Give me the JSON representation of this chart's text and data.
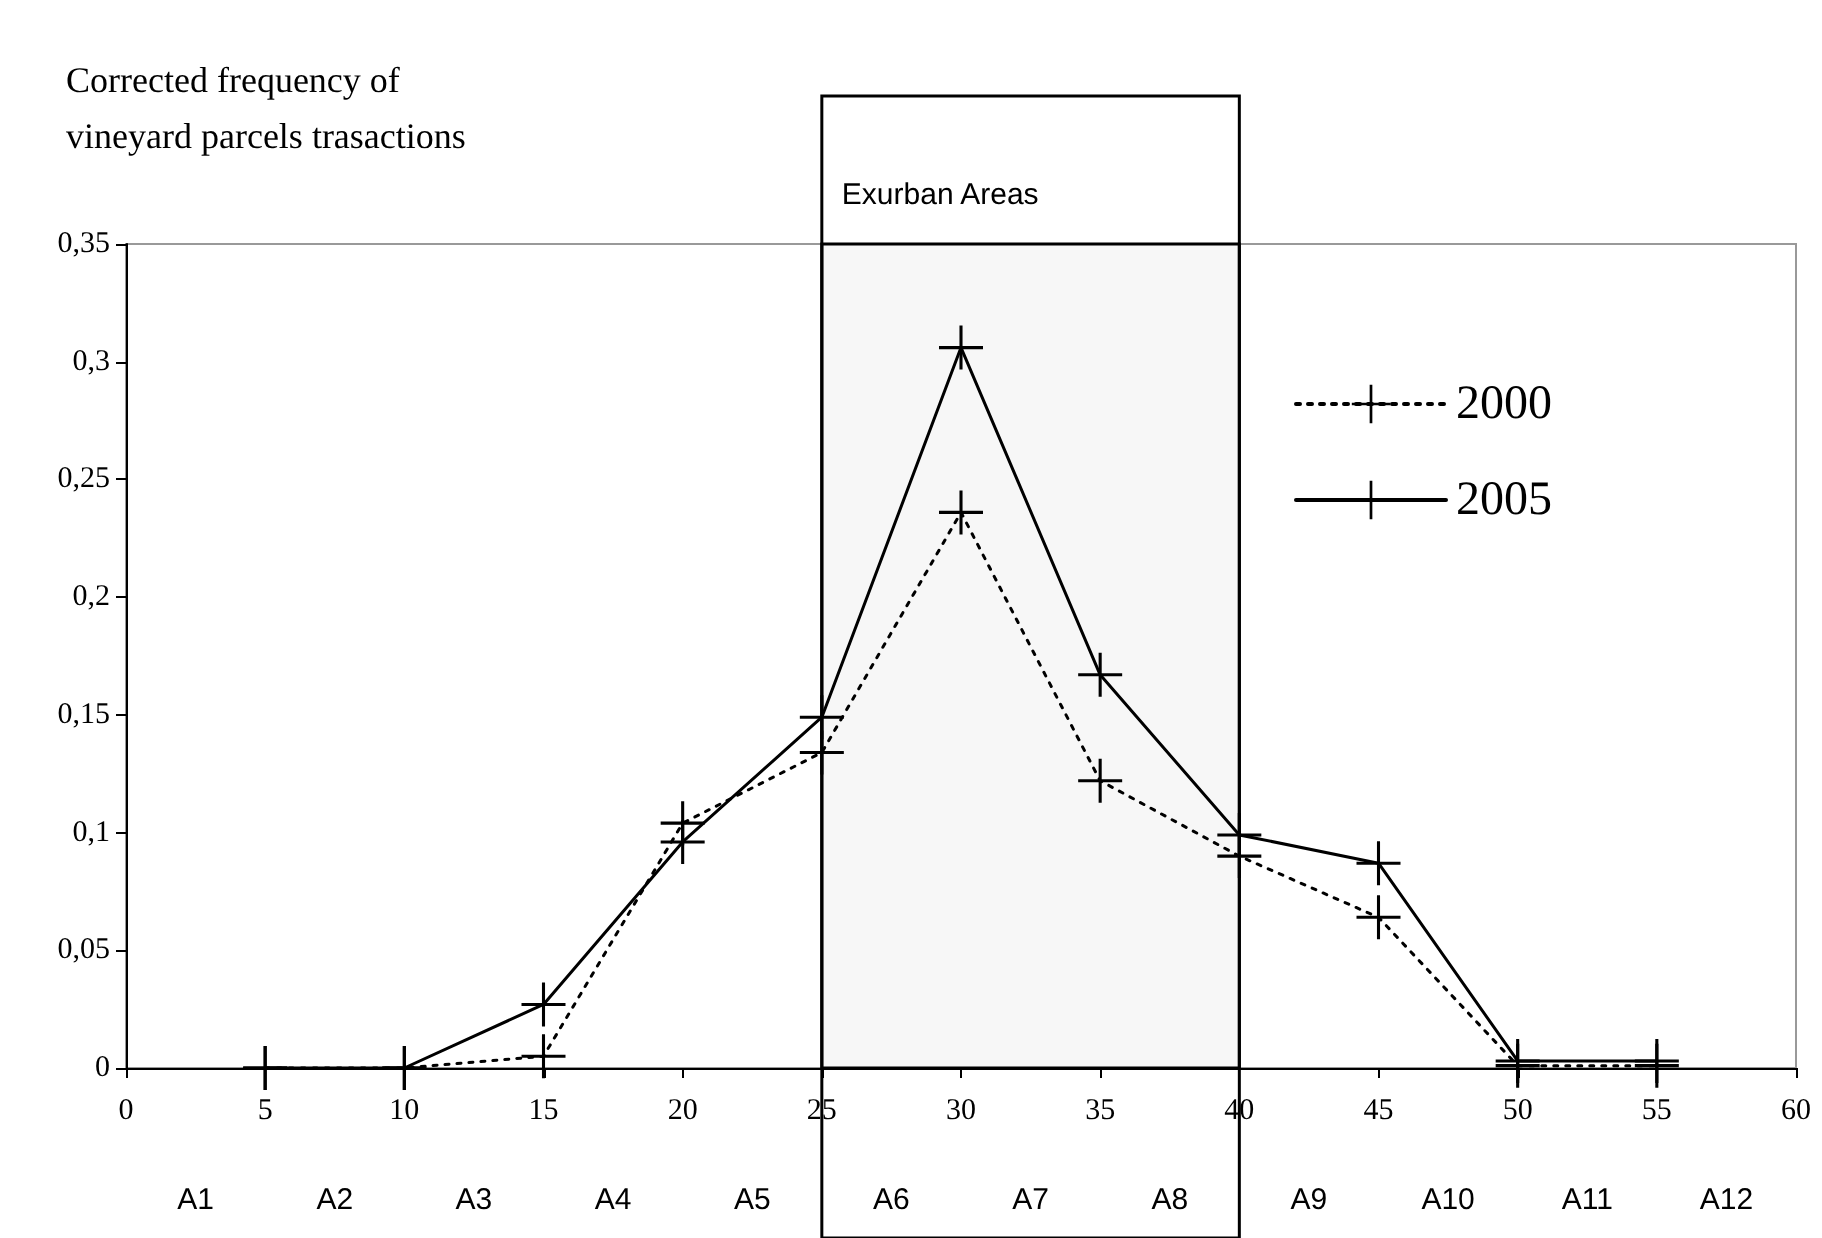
{
  "chart_data": {
    "type": "line",
    "ylabel": "Corrected frequency of\nvineyard parcels trasactions",
    "x": [
      5,
      10,
      15,
      20,
      25,
      30,
      35,
      40,
      45,
      50,
      55
    ],
    "series": [
      {
        "name": "2000",
        "color": "#000000",
        "line_style": "dotted",
        "values": [
          0,
          0,
          0.005,
          0.104,
          0.134,
          0.236,
          0.122,
          0.09,
          0.064,
          0.001,
          0.001
        ]
      },
      {
        "name": "2005",
        "color": "#000000",
        "line_style": "solid",
        "values": [
          0,
          0,
          0.027,
          0.096,
          0.149,
          0.306,
          0.167,
          0.099,
          0.087,
          0.003,
          0.003
        ]
      }
    ],
    "xlim": [
      0,
      60
    ],
    "xticks": [
      0,
      5,
      10,
      15,
      20,
      25,
      30,
      35,
      40,
      45,
      50,
      55,
      60
    ],
    "ylim": [
      0,
      0.35
    ],
    "yticks": [
      {
        "value": 0,
        "label": "0"
      },
      {
        "value": 0.05,
        "label": "0,05"
      },
      {
        "value": 0.1,
        "label": "0,1"
      },
      {
        "value": 0.15,
        "label": "0,15"
      },
      {
        "value": 0.2,
        "label": "0,2"
      },
      {
        "value": 0.25,
        "label": "0,25"
      },
      {
        "value": 0.3,
        "label": "0,3"
      },
      {
        "value": 0.35,
        "label": "0,35"
      }
    ],
    "bands": [
      {
        "axis": "x",
        "from": 25,
        "to": 40,
        "label": "Exurban Areas"
      }
    ],
    "annotations": [
      "A1",
      "A2",
      "A3",
      "A4",
      "A5",
      "A6",
      "A7",
      "A8",
      "A9",
      "A10",
      "A11",
      "A12"
    ],
    "legend": "top right",
    "marker": "cross",
    "grid": false
  }
}
